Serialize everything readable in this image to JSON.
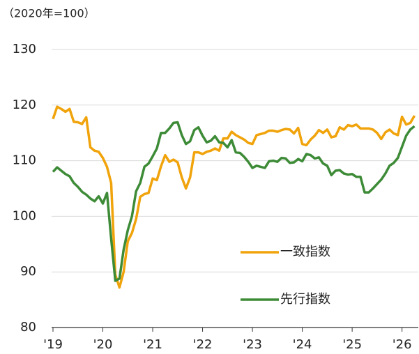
{
  "chart_data": {
    "type": "line",
    "unit_label": "（2020年=100）",
    "categories": [
      "'19",
      null,
      null,
      null,
      null,
      null,
      null,
      null,
      null,
      null,
      null,
      null,
      "'20",
      null,
      null,
      null,
      null,
      null,
      null,
      null,
      null,
      null,
      null,
      null,
      "'21",
      null,
      null,
      null,
      null,
      null,
      null,
      null,
      null,
      null,
      null,
      null,
      "'22",
      null,
      null,
      null,
      null,
      null,
      null,
      null,
      null,
      null,
      null,
      null,
      "'23",
      null,
      null,
      null,
      null,
      null,
      null,
      null,
      null,
      null,
      null,
      null,
      "'24",
      null,
      null,
      null,
      null,
      null,
      null,
      null,
      null,
      null,
      null,
      null,
      "'25",
      null,
      null,
      null,
      null,
      null,
      null,
      null,
      null,
      null,
      null,
      null,
      "'26",
      null,
      null,
      null
    ],
    "series": [
      {
        "name": "一致指数",
        "color": "#f0a30a",
        "values": [
          117.5,
          119.7,
          119.3,
          118.8,
          119.3,
          117.0,
          116.9,
          116.6,
          117.8,
          112.4,
          111.8,
          111.6,
          110.5,
          108.9,
          106.0,
          89.5,
          87.2,
          90.0,
          95.5,
          97.0,
          99.5,
          103.5,
          104.0,
          104.2,
          106.8,
          106.5,
          109.0,
          111.0,
          109.8,
          110.2,
          109.7,
          107.0,
          105.0,
          107.0,
          111.5,
          111.5,
          111.2,
          111.6,
          111.8,
          112.2,
          111.8,
          114.0,
          114.0,
          115.2,
          114.6,
          114.2,
          113.8,
          113.2,
          113.0,
          114.6,
          114.8,
          115.0,
          115.4,
          115.4,
          115.2,
          115.5,
          115.7,
          115.6,
          114.9,
          115.9,
          113.0,
          112.8,
          113.8,
          114.5,
          115.5,
          115.0,
          115.6,
          114.2,
          114.4,
          116.0,
          115.6,
          116.4,
          116.2,
          116.5,
          115.8,
          115.8,
          115.8,
          115.6,
          115.0,
          113.9,
          115.1,
          115.6,
          114.9,
          114.6,
          117.9,
          116.5,
          116.8,
          118.1
        ]
      },
      {
        "name": "先行指数",
        "color": "#3d8b37",
        "values": [
          108.0,
          108.8,
          108.2,
          107.6,
          107.2,
          106.0,
          105.3,
          104.4,
          103.9,
          103.2,
          102.7,
          103.6,
          102.3,
          104.2,
          96.0,
          88.4,
          88.8,
          94.0,
          97.5,
          100.0,
          104.5,
          106.0,
          108.9,
          109.5,
          110.8,
          112.2,
          115.0,
          115.0,
          115.8,
          116.8,
          116.9,
          114.6,
          113.0,
          113.5,
          115.5,
          116.0,
          114.5,
          113.3,
          113.6,
          114.4,
          113.3,
          113.2,
          112.4,
          113.7,
          111.5,
          111.4,
          110.7,
          109.8,
          108.7,
          109.1,
          108.9,
          108.7,
          109.9,
          110.0,
          109.8,
          110.5,
          110.4,
          109.6,
          109.7,
          110.3,
          109.9,
          111.2,
          111.0,
          110.4,
          110.6,
          109.5,
          109.1,
          107.4,
          108.2,
          108.3,
          107.7,
          107.5,
          107.6,
          107.1,
          107.1,
          104.3,
          104.3,
          105.0,
          105.8,
          106.6,
          107.7,
          109.1,
          109.6,
          110.5,
          112.5,
          114.5,
          115.6,
          116.2
        ]
      }
    ],
    "ylim": [
      80,
      130
    ],
    "yticks": [
      80,
      90,
      100,
      110,
      120,
      130
    ],
    "grid": true
  }
}
